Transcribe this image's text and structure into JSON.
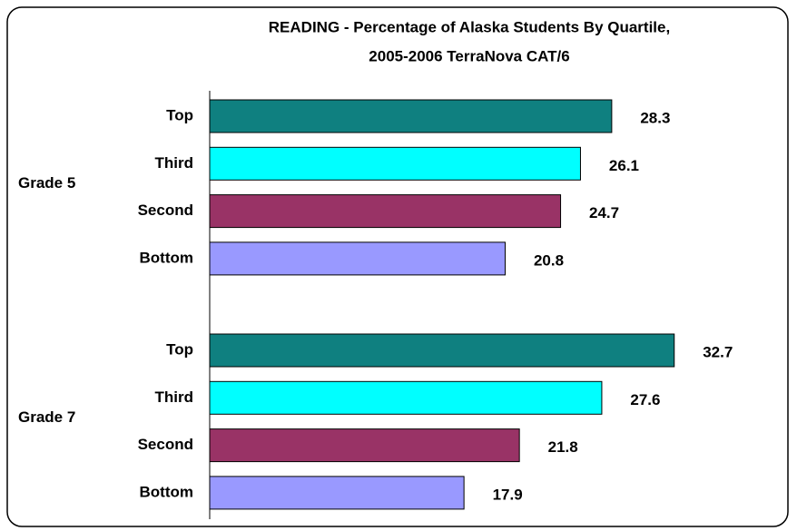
{
  "chart_data": {
    "type": "bar",
    "orientation": "horizontal",
    "title": "READING - Percentage of Alaska Students By Quartile, 2005-2006 TerraNova CAT/6",
    "title_lines": [
      "READING - Percentage of Alaska Students By Quartile,",
      "2005-2006 TerraNova CAT/6"
    ],
    "categories": [
      "Top",
      "Third",
      "Second",
      "Bottom"
    ],
    "colors": [
      "#0f8080",
      "#00ffff",
      "#993366",
      "#9999ff"
    ],
    "series": [
      {
        "name": "Grade 5",
        "values": [
          28.3,
          26.1,
          24.7,
          20.8
        ]
      },
      {
        "name": "Grade 7",
        "values": [
          32.7,
          27.6,
          21.8,
          17.9
        ]
      }
    ],
    "xlim": [
      0,
      40
    ]
  }
}
